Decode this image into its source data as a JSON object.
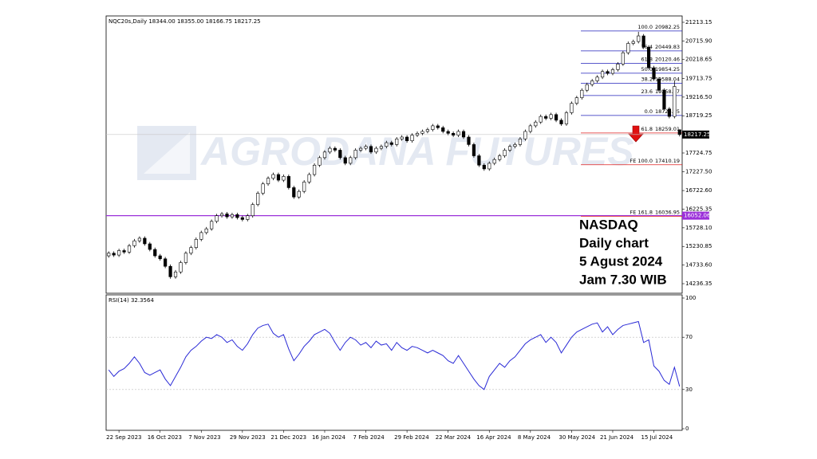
{
  "chart_data": [
    {
      "type": "candlestick",
      "header": "NQC20s,Daily  18344.00 18355.00 18166.75 18217.25",
      "watermark": "AGRODANA FUTURES",
      "annotation": [
        "NASDAQ",
        "Daily chart",
        "5 Agust 2024",
        "Jam 7.30 WIB"
      ],
      "categories": [
        null,
        null,
        "22 Sep 2023",
        null,
        null,
        null,
        null,
        null,
        null,
        null,
        "16 Oct 2023",
        null,
        null,
        null,
        null,
        null,
        null,
        null,
        "7 Nov 2023",
        null,
        null,
        null,
        null,
        null,
        null,
        null,
        "29 Nov 2023",
        null,
        null,
        null,
        null,
        null,
        null,
        null,
        "21 Dec 2023",
        null,
        null,
        null,
        null,
        null,
        null,
        null,
        "16 Jan 2024",
        null,
        null,
        null,
        null,
        null,
        null,
        null,
        "7 Feb 2024",
        null,
        null,
        null,
        null,
        null,
        null,
        null,
        "29 Feb 2024",
        null,
        null,
        null,
        null,
        null,
        null,
        null,
        "22 Mar 2024",
        null,
        null,
        null,
        null,
        null,
        null,
        null,
        "16 Apr 2024",
        null,
        null,
        null,
        null,
        null,
        null,
        null,
        "8 May 2024",
        null,
        null,
        null,
        null,
        null,
        null,
        null,
        "30 May 2024",
        null,
        null,
        null,
        null,
        null,
        null,
        null,
        "21 Jun 2024",
        null,
        null,
        null,
        null,
        null,
        null,
        null,
        "15 Jul 2024",
        null,
        null,
        null,
        null,
        null
      ],
      "open": [
        14980,
        15050,
        15000,
        15120,
        15080,
        15250,
        15380,
        15450,
        15300,
        15150,
        14980,
        14900,
        14700,
        14420,
        14550,
        14800,
        15050,
        15200,
        15420,
        15600,
        15700,
        15900,
        16050,
        16100,
        16020,
        16080,
        16000,
        15950,
        16050,
        16350,
        16650,
        16900,
        17050,
        17150,
        17000,
        17100,
        16800,
        16550,
        16700,
        16950,
        17150,
        17400,
        17600,
        17750,
        17850,
        17800,
        17600,
        17450,
        17600,
        17800,
        17850,
        17900,
        17750,
        17850,
        17900,
        18000,
        17950,
        18100,
        18150,
        18050,
        18200,
        18250,
        18300,
        18350,
        18450,
        18400,
        18300,
        18250,
        18200,
        18300,
        18150,
        17950,
        17650,
        17400,
        17300,
        17450,
        17550,
        17650,
        17800,
        17900,
        17950,
        18100,
        18300,
        18450,
        18550,
        18700,
        18650,
        18750,
        18600,
        18500,
        18800,
        19050,
        19200,
        19400,
        19550,
        19650,
        19750,
        19900,
        19850,
        19950,
        20100,
        20400,
        20650,
        20700,
        20850,
        20550,
        20000,
        19700,
        19400,
        18900,
        18700,
        18344
      ],
      "high": [
        15100,
        15100,
        15170,
        15170,
        15300,
        15430,
        15500,
        15500,
        15350,
        15200,
        15030,
        14950,
        14750,
        14600,
        14850,
        15100,
        15250,
        15470,
        15650,
        15750,
        15950,
        16100,
        16150,
        16150,
        16130,
        16130,
        16050,
        16100,
        16400,
        16700,
        16950,
        17100,
        17200,
        17200,
        17150,
        17150,
        16850,
        16750,
        17000,
        17200,
        17450,
        17650,
        17800,
        17900,
        17900,
        17850,
        17650,
        17650,
        17850,
        17900,
        17950,
        17950,
        17900,
        17950,
        18050,
        18050,
        18150,
        18200,
        18200,
        18250,
        18300,
        18350,
        18400,
        18500,
        18500,
        18450,
        18350,
        18300,
        18350,
        18350,
        18200,
        18000,
        17700,
        17450,
        17500,
        17600,
        17700,
        17850,
        17950,
        18000,
        18150,
        18350,
        18500,
        18600,
        18750,
        18750,
        18800,
        18800,
        18650,
        18850,
        19100,
        19250,
        19450,
        19600,
        19700,
        19800,
        19950,
        19950,
        20000,
        20150,
        20450,
        20700,
        20750,
        20960,
        20900,
        20600,
        20050,
        19750,
        19450,
        18950,
        19650,
        18355
      ],
      "low": [
        14930,
        14950,
        14950,
        15030,
        15030,
        15200,
        15330,
        15250,
        15100,
        14930,
        14850,
        14650,
        14370,
        14370,
        14500,
        14750,
        15000,
        15150,
        15370,
        15550,
        15650,
        15850,
        16000,
        15970,
        15970,
        15950,
        15900,
        15900,
        16000,
        16300,
        16600,
        16850,
        17000,
        16950,
        16950,
        16750,
        16500,
        16500,
        16650,
        16900,
        17100,
        17350,
        17550,
        17700,
        17750,
        17550,
        17400,
        17400,
        17550,
        17750,
        17800,
        17700,
        17700,
        17800,
        17850,
        17900,
        17900,
        18050,
        18000,
        18000,
        18150,
        18200,
        18250,
        18300,
        18350,
        18250,
        18200,
        18150,
        18150,
        18100,
        17900,
        17600,
        17350,
        17250,
        17250,
        17400,
        17500,
        17600,
        17750,
        17850,
        17900,
        18050,
        18250,
        18400,
        18500,
        18600,
        18600,
        18550,
        18450,
        18450,
        18750,
        19000,
        19150,
        19350,
        19500,
        19600,
        19700,
        19800,
        19800,
        19900,
        20050,
        20350,
        20600,
        20650,
        20500,
        19950,
        19650,
        19350,
        18850,
        18650,
        18650,
        18166.75
      ],
      "close": [
        15050,
        15000,
        15120,
        15080,
        15250,
        15380,
        15450,
        15300,
        15150,
        14980,
        14900,
        14700,
        14420,
        14550,
        14800,
        15050,
        15200,
        15420,
        15600,
        15700,
        15900,
        16050,
        16100,
        16020,
        16080,
        16000,
        15950,
        16050,
        16350,
        16650,
        16900,
        17050,
        17150,
        17000,
        17100,
        16800,
        16550,
        16700,
        16950,
        17150,
        17400,
        17600,
        17750,
        17850,
        17800,
        17600,
        17450,
        17600,
        17800,
        17850,
        17900,
        17750,
        17850,
        17900,
        18000,
        17950,
        18100,
        18150,
        18050,
        18200,
        18250,
        18300,
        18350,
        18450,
        18400,
        18300,
        18250,
        18200,
        18300,
        18150,
        17950,
        17650,
        17400,
        17300,
        17450,
        17550,
        17650,
        17800,
        17900,
        17950,
        18100,
        18300,
        18450,
        18550,
        18700,
        18650,
        18750,
        18600,
        18500,
        18800,
        19050,
        19200,
        19400,
        19550,
        19650,
        19750,
        19900,
        19850,
        19950,
        20100,
        20400,
        20650,
        20700,
        20850,
        20550,
        20000,
        19700,
        19400,
        18900,
        18700,
        19500,
        18217.25
      ],
      "up_color": "#ffffff",
      "down_color": "#000000",
      "ylim": [
        13981,
        21383
      ],
      "yticks": [
        21213.15,
        {
          "value": 20715.9,
          "label": "20715.90"
        },
        20218.65,
        19713.75,
        {
          "value": 19216.5,
          "label": "19216.50"
        },
        18719.25,
        17724.75,
        {
          "value": 17227.5,
          "label": "17227.50"
        },
        {
          "value": 16722.6,
          "label": "16722.60"
        },
        16225.35,
        {
          "value": 15728.1,
          "label": "15728.10"
        },
        15230.85,
        {
          "value": 14733.6,
          "label": "14733.60"
        },
        14236.35
      ],
      "current_price": 18217.25,
      "hline": {
        "value": 16052.06,
        "color": "#9b30d9"
      },
      "fibonacci": [
        {
          "label": "100.0",
          "value": 20982.25,
          "color": "#2222bb"
        },
        {
          "label": "76.4",
          "value": 20449.83,
          "color": "#2222bb"
        },
        {
          "label": "61.8",
          "value": 20120.46,
          "color": "#2222bb"
        },
        {
          "label": "50.0",
          "value": 19854.25,
          "color": "#2222bb"
        },
        {
          "label": "38.2",
          "value": 19588.04,
          "color": "#2222bb"
        },
        {
          "label": "23.6",
          "value": 19258.67,
          "color": "#2222bb"
        },
        {
          "label": "0.0",
          "value": 18726.25,
          "color": "#2222bb"
        },
        {
          "label": "61.8",
          "value": 18259.01,
          "color": "#e02020"
        },
        {
          "label": "FE 100.0",
          "value": 17410.19,
          "color": "#e02020"
        },
        {
          "label": "FE 161.8",
          "value": 16036.95,
          "color": "#e02020"
        }
      ]
    },
    {
      "type": "line",
      "title": "RSI(14) 32.3564",
      "color": "#2a2ad6",
      "values": [
        45,
        40,
        44,
        46,
        50,
        55,
        50,
        43,
        41,
        43,
        45,
        38,
        33,
        40,
        47,
        55,
        60,
        63,
        67,
        70,
        69,
        72,
        70,
        66,
        68,
        63,
        60,
        65,
        72,
        77,
        79,
        80,
        73,
        70,
        72,
        61,
        52,
        57,
        63,
        67,
        72,
        74,
        76,
        73,
        66,
        60,
        66,
        70,
        68,
        64,
        66,
        62,
        67,
        64,
        65,
        60,
        66,
        62,
        60,
        63,
        62,
        60,
        58,
        60,
        58,
        56,
        52,
        50,
        56,
        50,
        44,
        38,
        33,
        30,
        40,
        45,
        50,
        47,
        52,
        55,
        60,
        65,
        68,
        70,
        72,
        66,
        70,
        66,
        58,
        64,
        70,
        74,
        76,
        78,
        80,
        81,
        74,
        78,
        72,
        76,
        79,
        80,
        81,
        82,
        66,
        68,
        48,
        44,
        37,
        34,
        47,
        32.3564
      ],
      "ylim": [
        0,
        100
      ],
      "yticks": [
        100,
        70,
        30,
        0
      ]
    }
  ]
}
